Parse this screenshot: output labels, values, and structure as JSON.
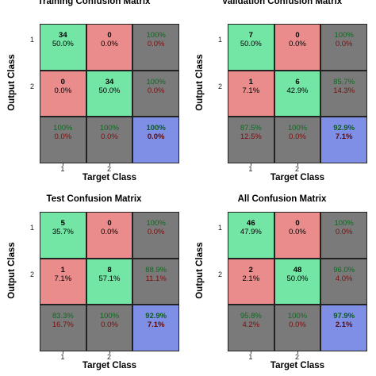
{
  "chart_data": [
    {
      "type": "heatmap",
      "title": "Training Confusion Matrix",
      "xlabel": "Target Class",
      "ylabel": "Output Class",
      "x_ticks": [
        "1",
        "2"
      ],
      "y_ticks": [
        "1",
        "2"
      ],
      "cells": [
        [
          {
            "top": "34",
            "bottom": "50.0%"
          },
          {
            "top": "0",
            "bottom": "0.0%"
          },
          {
            "top": "100%",
            "bottom": "0.0%"
          }
        ],
        [
          {
            "top": "0",
            "bottom": "0.0%"
          },
          {
            "top": "34",
            "bottom": "50.0%"
          },
          {
            "top": "100%",
            "bottom": "0.0%"
          }
        ],
        [
          {
            "top": "100%",
            "bottom": "0.0%"
          },
          {
            "top": "100%",
            "bottom": "0.0%"
          },
          {
            "top": "100%",
            "bottom": "0.0%"
          }
        ]
      ]
    },
    {
      "type": "heatmap",
      "title": "Validation Confusion Matrix",
      "xlabel": "Target Class",
      "ylabel": "Output Class",
      "x_ticks": [
        "1",
        "2"
      ],
      "y_ticks": [
        "1",
        "2"
      ],
      "cells": [
        [
          {
            "top": "7",
            "bottom": "50.0%"
          },
          {
            "top": "0",
            "bottom": "0.0%"
          },
          {
            "top": "100%",
            "bottom": "0.0%"
          }
        ],
        [
          {
            "top": "1",
            "bottom": "7.1%"
          },
          {
            "top": "6",
            "bottom": "42.9%"
          },
          {
            "top": "85.7%",
            "bottom": "14.3%"
          }
        ],
        [
          {
            "top": "87.5%",
            "bottom": "12.5%"
          },
          {
            "top": "100%",
            "bottom": "0.0%"
          },
          {
            "top": "92.9%",
            "bottom": "7.1%"
          }
        ]
      ]
    },
    {
      "type": "heatmap",
      "title": "Test Confusion Matrix",
      "xlabel": "Target Class",
      "ylabel": "Output Class",
      "x_ticks": [
        "1",
        "2"
      ],
      "y_ticks": [
        "1",
        "2"
      ],
      "cells": [
        [
          {
            "top": "5",
            "bottom": "35.7%"
          },
          {
            "top": "0",
            "bottom": "0.0%"
          },
          {
            "top": "100%",
            "bottom": "0.0%"
          }
        ],
        [
          {
            "top": "1",
            "bottom": "7.1%"
          },
          {
            "top": "8",
            "bottom": "57.1%"
          },
          {
            "top": "88.9%",
            "bottom": "11.1%"
          }
        ],
        [
          {
            "top": "83.3%",
            "bottom": "16.7%"
          },
          {
            "top": "100%",
            "bottom": "0.0%"
          },
          {
            "top": "92.9%",
            "bottom": "7.1%"
          }
        ]
      ]
    },
    {
      "type": "heatmap",
      "title": "All Confusion Matrix",
      "xlabel": "Target Class",
      "ylabel": "Output Class",
      "x_ticks": [
        "1",
        "2"
      ],
      "y_ticks": [
        "1",
        "2"
      ],
      "cells": [
        [
          {
            "top": "46",
            "bottom": "47.9%"
          },
          {
            "top": "0",
            "bottom": "0.0%"
          },
          {
            "top": "100%",
            "bottom": "0.0%"
          }
        ],
        [
          {
            "top": "2",
            "bottom": "2.1%"
          },
          {
            "top": "48",
            "bottom": "50.0%"
          },
          {
            "top": "96.0%",
            "bottom": "4.0%"
          }
        ],
        [
          {
            "top": "95.8%",
            "bottom": "4.2%"
          },
          {
            "top": "100%",
            "bottom": "0.0%"
          },
          {
            "top": "97.9%",
            "bottom": "2.1%"
          }
        ]
      ]
    }
  ]
}
